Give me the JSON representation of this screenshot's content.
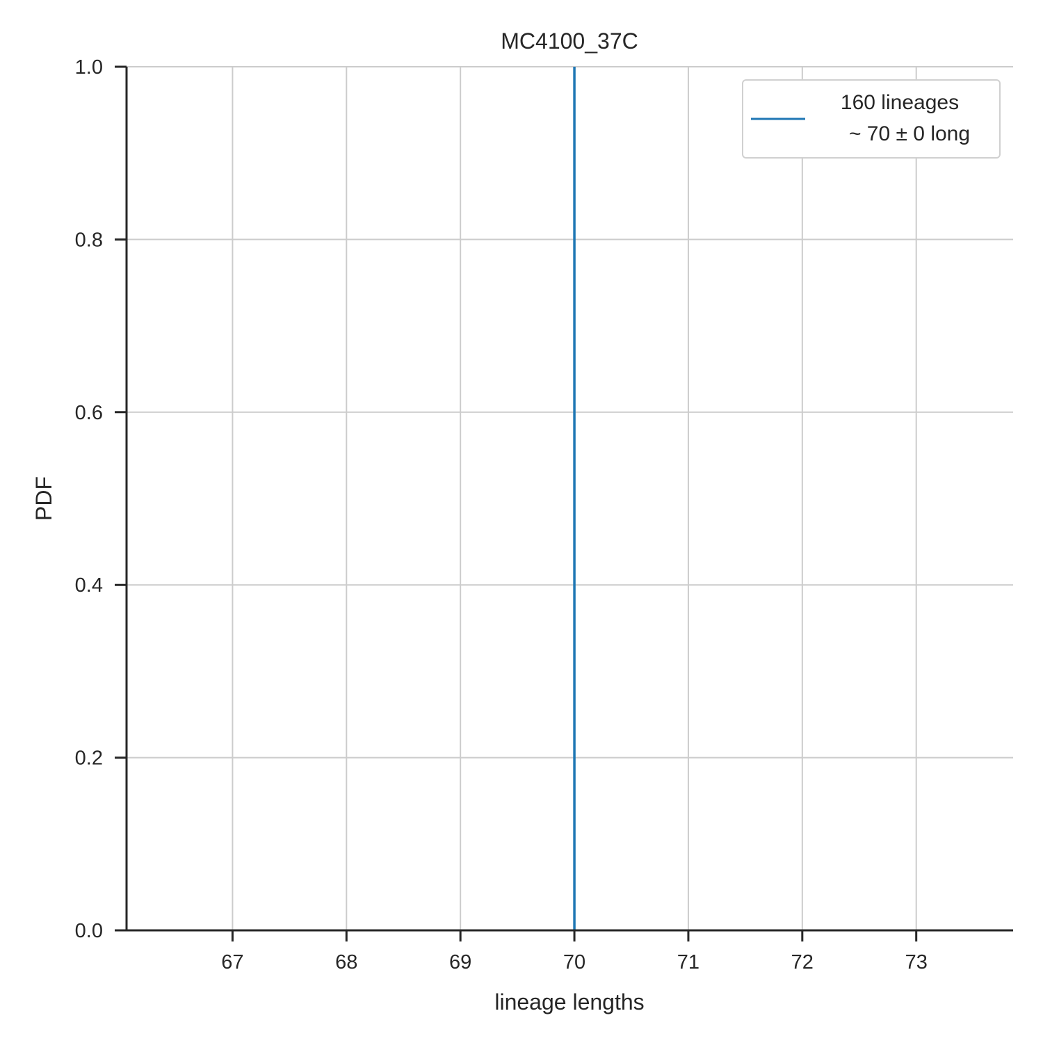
{
  "chart_data": {
    "type": "line",
    "title": "MC4100_37C",
    "xlabel": "lineage lengths",
    "ylabel": "PDF",
    "xlim": [
      66.07,
      73.85
    ],
    "ylim": [
      0,
      1.0
    ],
    "xticks": [
      67,
      68,
      69,
      70,
      71,
      72,
      73
    ],
    "xtick_labels": [
      "67",
      "68",
      "69",
      "70",
      "71",
      "72",
      "73"
    ],
    "yticks": [
      0.0,
      0.2,
      0.4,
      0.6,
      0.8,
      1.0
    ],
    "ytick_labels": [
      "0.0",
      "0.2",
      "0.4",
      "0.6",
      "0.8",
      "1.0"
    ],
    "grid": true,
    "legend_position": "top-right",
    "series": [
      {
        "name_lines": [
          "160 lineages",
          "~ 70 ± 0 long"
        ],
        "color": "#1f77b4",
        "x": [
          70,
          70
        ],
        "y": [
          0,
          1.0
        ]
      }
    ]
  },
  "colors": {
    "axis": "#262626",
    "grid": "#cccccc",
    "legend_border": "#d0d0d0"
  }
}
